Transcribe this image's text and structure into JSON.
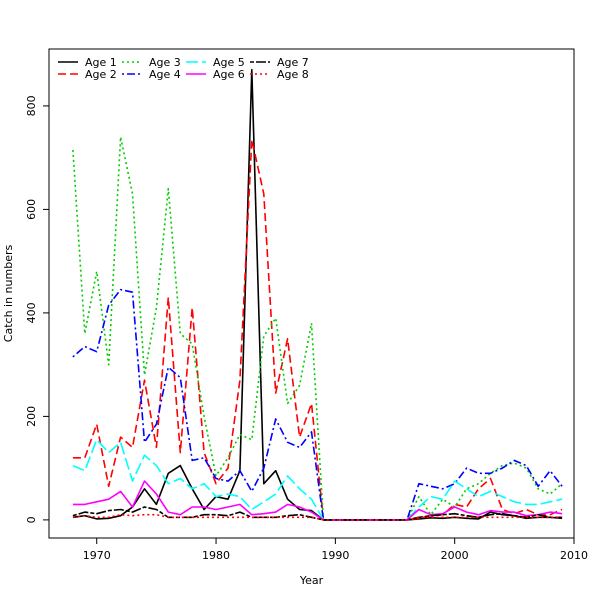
{
  "chart_data": {
    "type": "line",
    "title": "",
    "xlabel": "Year",
    "ylabel": "Catch in numbers",
    "xlim": [
      1966,
      2010
    ],
    "ylim": [
      -35,
      910
    ],
    "xticks": [
      1970,
      1980,
      1990,
      2000,
      2010
    ],
    "yticks": [
      0,
      200,
      400,
      600,
      800
    ],
    "grid": false,
    "legend_position": "top-left",
    "x": [
      1968,
      1969,
      1970,
      1971,
      1972,
      1973,
      1974,
      1975,
      1976,
      1977,
      1978,
      1979,
      1980,
      1981,
      1982,
      1983,
      1984,
      1985,
      1986,
      1987,
      1988,
      1989,
      1990,
      1991,
      1992,
      1993,
      1994,
      1995,
      1996,
      1997,
      1998,
      1999,
      2000,
      2001,
      2002,
      2003,
      2004,
      2005,
      2006,
      2007,
      2008,
      2009
    ],
    "series": [
      {
        "name": "Age 1",
        "color": "#000000",
        "dash": "solid",
        "values": [
          5,
          8,
          2,
          3,
          8,
          25,
          60,
          30,
          90,
          105,
          60,
          20,
          45,
          40,
          95,
          870,
          70,
          95,
          40,
          20,
          18,
          0,
          0,
          0,
          0,
          0,
          0,
          0,
          0,
          2,
          4,
          3,
          5,
          3,
          2,
          15,
          10,
          8,
          3,
          5,
          5,
          3
        ]
      },
      {
        "name": "Age 2",
        "color": "#FF0000",
        "dash": "dashed",
        "values": [
          120,
          120,
          185,
          65,
          160,
          140,
          270,
          140,
          430,
          130,
          410,
          130,
          70,
          100,
          270,
          735,
          630,
          245,
          350,
          160,
          225,
          0,
          0,
          0,
          0,
          0,
          0,
          0,
          0,
          3,
          8,
          10,
          30,
          25,
          60,
          80,
          20,
          12,
          20,
          10,
          10,
          20
        ]
      },
      {
        "name": "Age 3",
        "color": "#00CD00",
        "dash": "dotted",
        "values": [
          715,
          360,
          480,
          300,
          740,
          630,
          280,
          410,
          640,
          360,
          340,
          200,
          85,
          120,
          165,
          155,
          355,
          390,
          225,
          260,
          380,
          0,
          0,
          0,
          0,
          0,
          0,
          0,
          0,
          45,
          10,
          40,
          25,
          60,
          70,
          90,
          105,
          110,
          100,
          60,
          50,
          70
        ]
      },
      {
        "name": "Age 4",
        "color": "#0000FF",
        "dash": "dotdash",
        "values": [
          315,
          335,
          325,
          415,
          445,
          440,
          150,
          185,
          295,
          275,
          115,
          120,
          80,
          75,
          95,
          55,
          100,
          195,
          150,
          140,
          170,
          0,
          0,
          0,
          0,
          0,
          0,
          0,
          0,
          70,
          65,
          60,
          70,
          100,
          90,
          90,
          100,
          115,
          105,
          65,
          95,
          65
        ]
      },
      {
        "name": "Age 5",
        "color": "#00FFFF",
        "dash": "longdash",
        "values": [
          105,
          95,
          155,
          130,
          150,
          75,
          125,
          105,
          70,
          80,
          60,
          70,
          45,
          50,
          45,
          20,
          35,
          50,
          85,
          60,
          40,
          0,
          0,
          0,
          0,
          0,
          0,
          0,
          0,
          25,
          45,
          40,
          75,
          60,
          45,
          55,
          45,
          35,
          30,
          30,
          35,
          40
        ]
      },
      {
        "name": "Age 6",
        "color": "#FF00FF",
        "dash": "solid",
        "values": [
          30,
          30,
          35,
          40,
          55,
          25,
          75,
          50,
          15,
          10,
          25,
          25,
          20,
          25,
          30,
          10,
          12,
          15,
          30,
          25,
          15,
          0,
          0,
          0,
          0,
          0,
          0,
          0,
          0,
          20,
          10,
          12,
          25,
          15,
          10,
          18,
          15,
          15,
          8,
          10,
          15,
          12
        ]
      },
      {
        "name": "Age 7",
        "color": "#000000",
        "dash": "twodash",
        "values": [
          8,
          15,
          12,
          18,
          20,
          15,
          25,
          20,
          5,
          5,
          5,
          10,
          10,
          8,
          15,
          5,
          5,
          5,
          8,
          10,
          5,
          0,
          0,
          0,
          0,
          0,
          0,
          0,
          0,
          5,
          8,
          10,
          12,
          8,
          5,
          10,
          12,
          8,
          5,
          10,
          5,
          5
        ]
      },
      {
        "name": "Age 8",
        "color": "#FF0000",
        "dash": "dotted",
        "values": [
          5,
          8,
          5,
          5,
          10,
          8,
          10,
          10,
          5,
          5,
          5,
          5,
          5,
          5,
          5,
          5,
          5,
          5,
          5,
          5,
          5,
          0,
          0,
          0,
          0,
          0,
          0,
          0,
          0,
          5,
          5,
          5,
          5,
          5,
          5,
          5,
          5,
          5,
          5,
          5,
          5,
          5
        ]
      }
    ]
  }
}
